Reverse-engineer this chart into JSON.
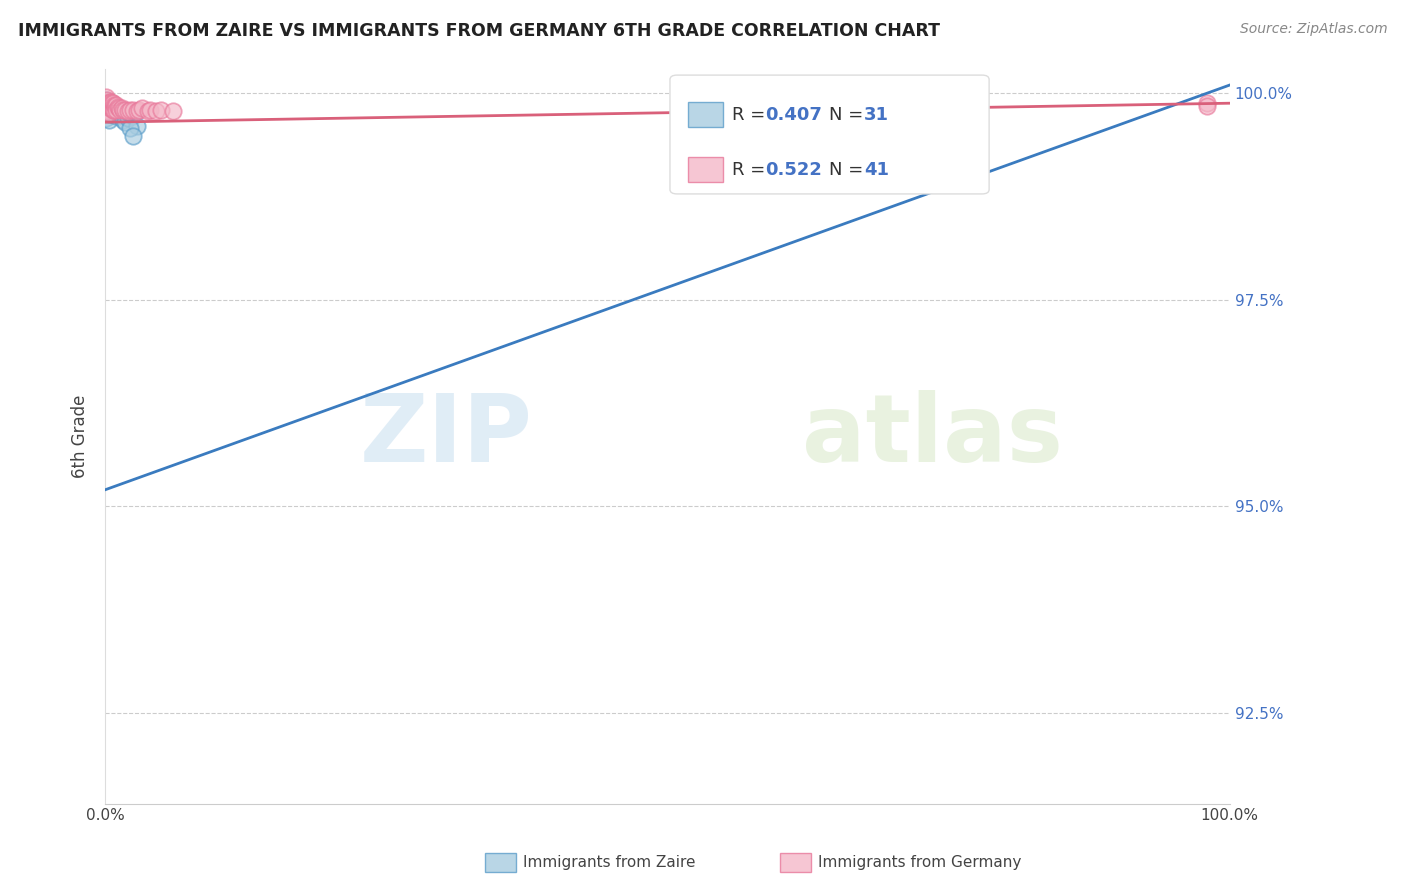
{
  "title": "IMMIGRANTS FROM ZAIRE VS IMMIGRANTS FROM GERMANY 6TH GRADE CORRELATION CHART",
  "source": "Source: ZipAtlas.com",
  "ylabel": "6th Grade",
  "legend_blue_label": "Immigrants from Zaire",
  "legend_pink_label": "Immigrants from Germany",
  "R_blue": 0.407,
  "N_blue": 31,
  "R_pink": 0.522,
  "N_pink": 41,
  "blue_color": "#a8cce0",
  "pink_color": "#f4b8c8",
  "blue_edge_color": "#5b9dc9",
  "pink_edge_color": "#e8789a",
  "blue_line_color": "#3a7bbf",
  "pink_line_color": "#d9607a",
  "watermark_zip": "ZIP",
  "watermark_atlas": "atlas",
  "xlim": [
    0.0,
    1.0
  ],
  "ylim": [
    0.914,
    1.003
  ],
  "yticks": [
    0.925,
    0.95,
    0.975,
    1.0
  ],
  "ytick_labels": [
    "92.5%",
    "95.0%",
    "97.5%",
    "100.0%"
  ],
  "blue_line_x0": 0.0,
  "blue_line_y0": 0.952,
  "blue_line_x1": 1.0,
  "blue_line_y1": 1.001,
  "pink_line_x0": 0.0,
  "pink_line_y0": 0.9965,
  "pink_line_x1": 1.0,
  "pink_line_y1": 0.9988,
  "blue_scatter_x": [
    0.001,
    0.001,
    0.001,
    0.002,
    0.002,
    0.003,
    0.003,
    0.003,
    0.004,
    0.004,
    0.005,
    0.005,
    0.006,
    0.006,
    0.007,
    0.008,
    0.009,
    0.01,
    0.01,
    0.011,
    0.012,
    0.013,
    0.015,
    0.016,
    0.018,
    0.02,
    0.022,
    0.025,
    0.028,
    0.022,
    0.025
  ],
  "blue_scatter_y": [
    0.9992,
    0.998,
    0.997,
    0.9985,
    0.9975,
    0.9988,
    0.9978,
    0.9968,
    0.9985,
    0.9975,
    0.9988,
    0.9978,
    0.9985,
    0.9975,
    0.998,
    0.9978,
    0.9978,
    0.998,
    0.9972,
    0.9978,
    0.9978,
    0.9972,
    0.9975,
    0.9968,
    0.9965,
    0.997,
    0.9975,
    0.9972,
    0.996,
    0.9958,
    0.9948
  ],
  "pink_scatter_x": [
    0.001,
    0.001,
    0.001,
    0.002,
    0.002,
    0.002,
    0.003,
    0.003,
    0.003,
    0.004,
    0.004,
    0.005,
    0.005,
    0.006,
    0.006,
    0.007,
    0.007,
    0.008,
    0.008,
    0.009,
    0.01,
    0.01,
    0.011,
    0.012,
    0.013,
    0.015,
    0.016,
    0.018,
    0.02,
    0.022,
    0.025,
    0.028,
    0.03,
    0.033,
    0.038,
    0.04,
    0.045,
    0.05,
    0.06,
    0.98,
    0.98
  ],
  "pink_scatter_y": [
    0.9995,
    0.9988,
    0.998,
    0.9992,
    0.9985,
    0.9978,
    0.999,
    0.9983,
    0.9976,
    0.9988,
    0.9982,
    0.999,
    0.9983,
    0.9988,
    0.9982,
    0.9988,
    0.998,
    0.9986,
    0.998,
    0.9985,
    0.9986,
    0.998,
    0.9984,
    0.9982,
    0.998,
    0.9982,
    0.998,
    0.998,
    0.9978,
    0.998,
    0.998,
    0.9978,
    0.998,
    0.9982,
    0.9978,
    0.998,
    0.9978,
    0.998,
    0.9978,
    0.9988,
    0.9985
  ]
}
